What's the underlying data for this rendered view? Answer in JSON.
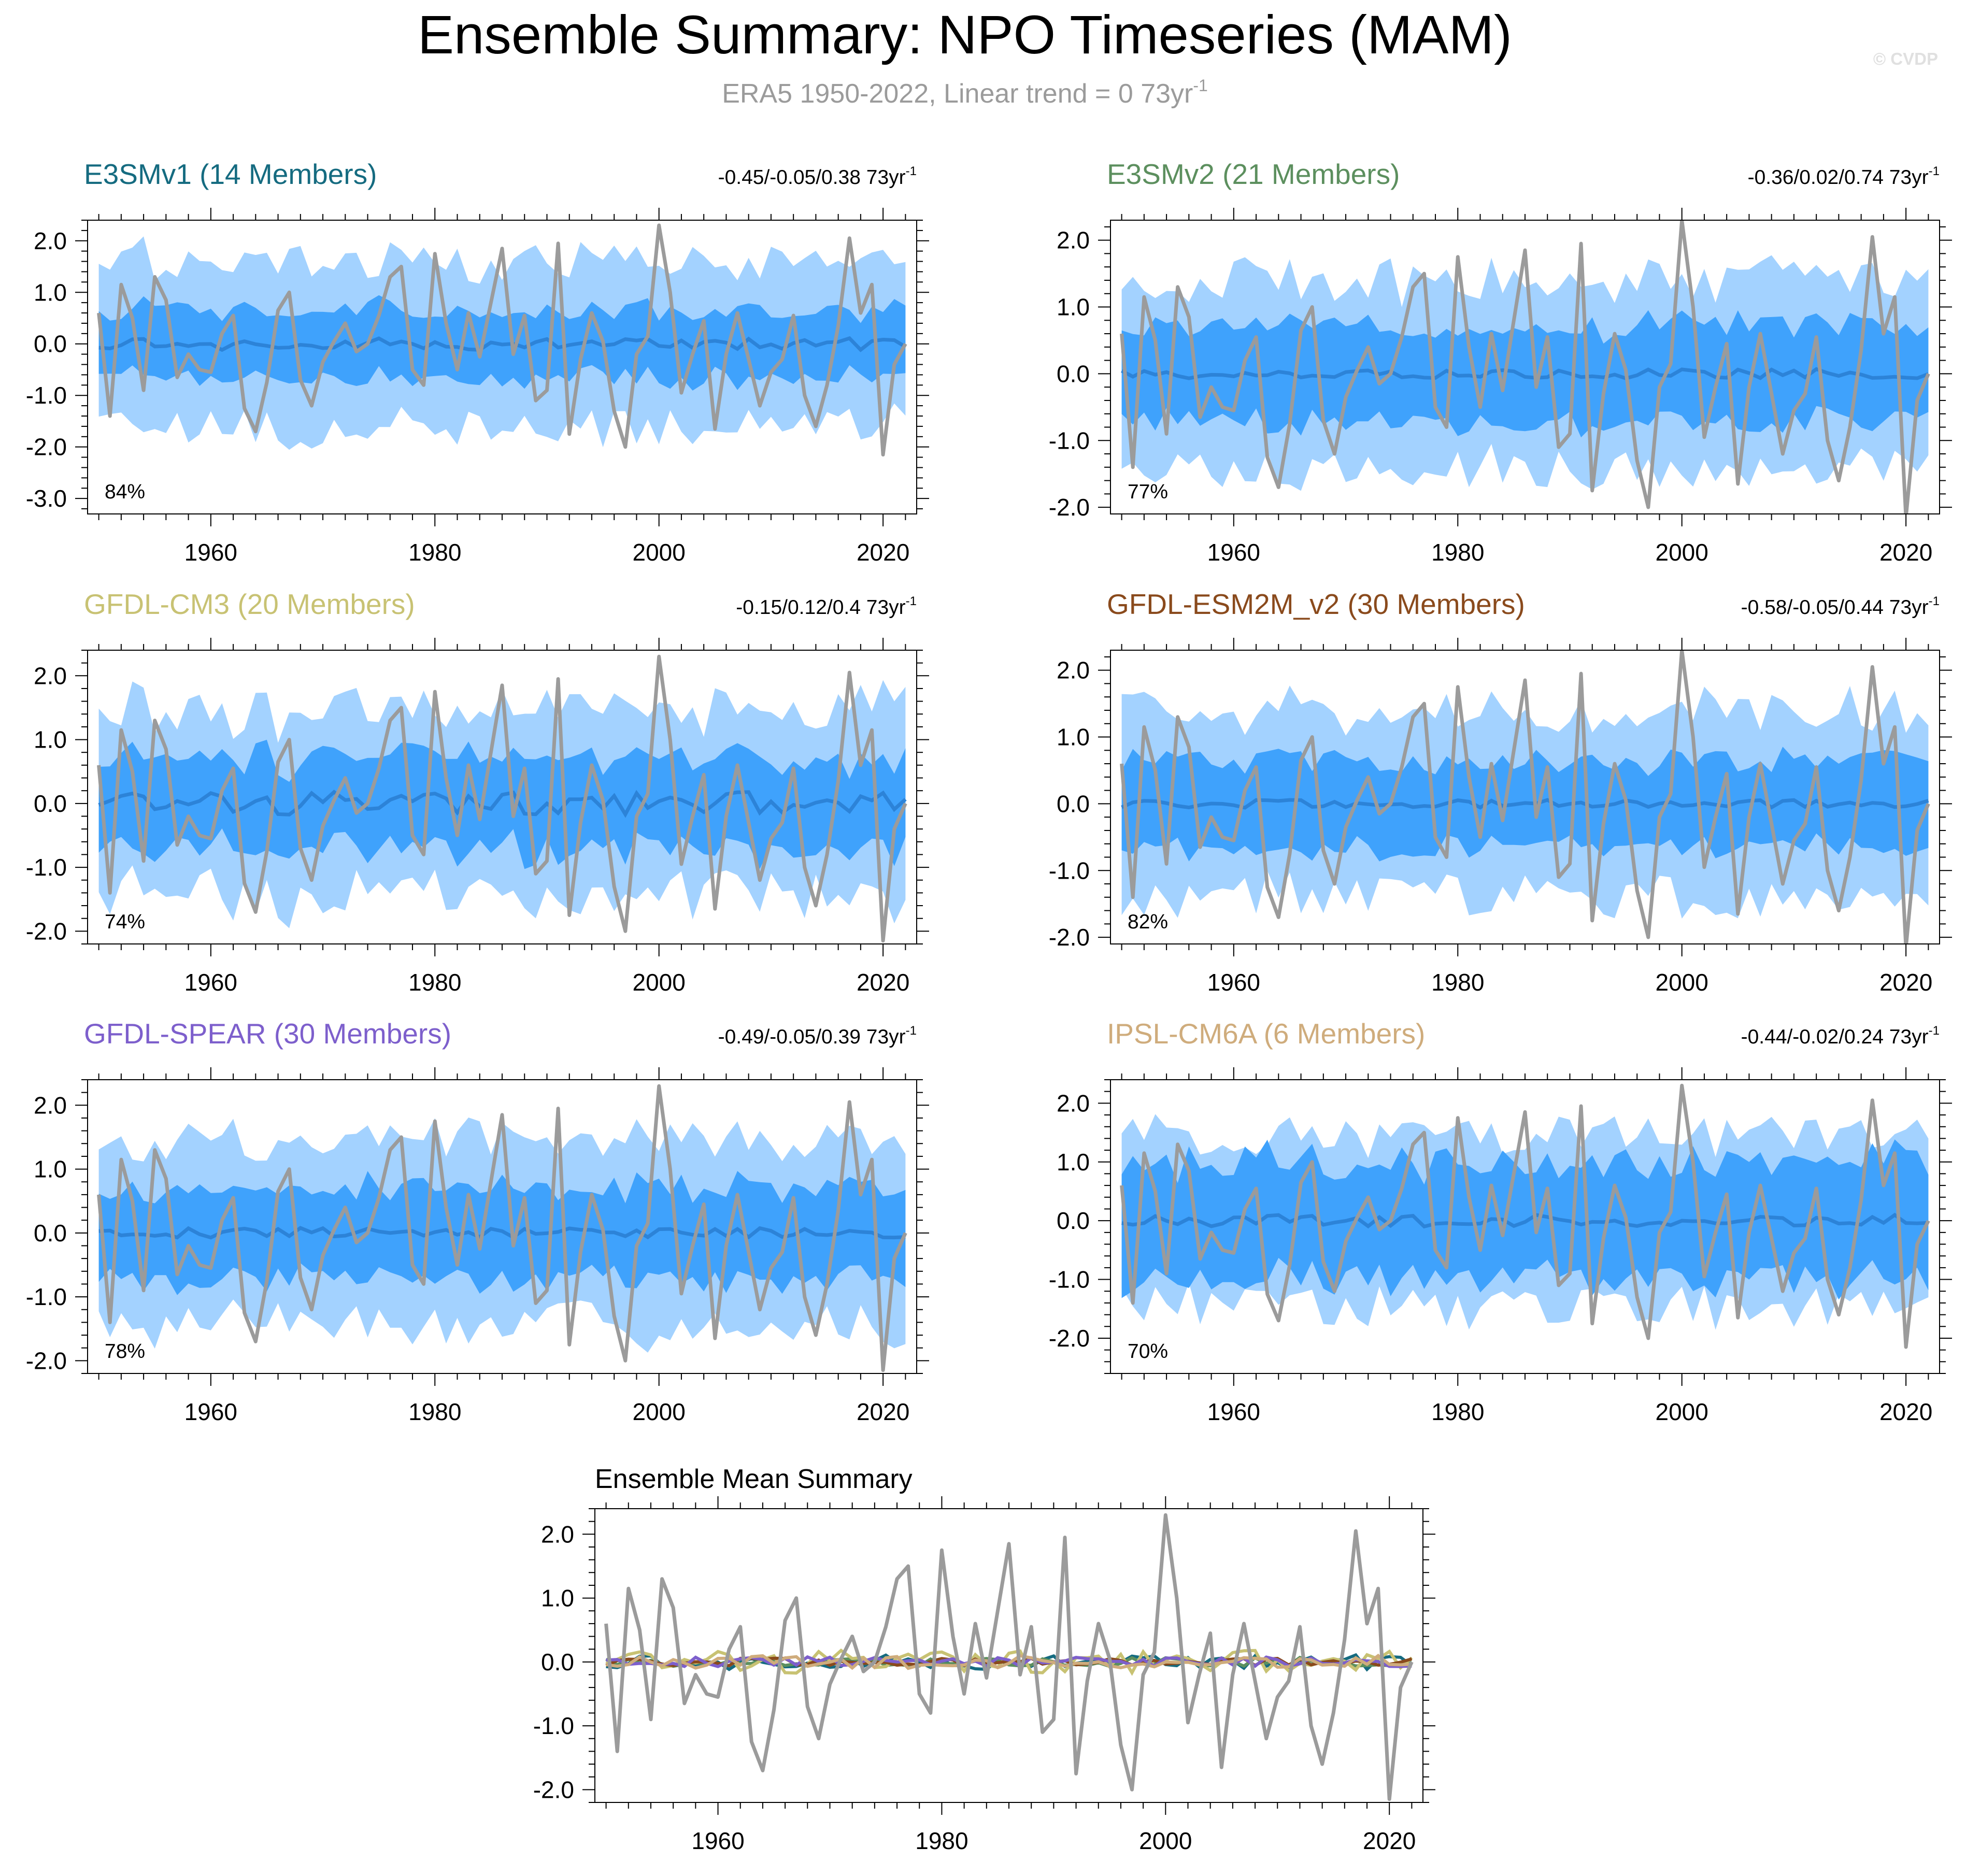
{
  "header": {
    "title": "Ensemble Summary: NPO Timeseries (MAM)",
    "subtitle": "ERA5 1950-2022, Linear trend = 0 73yr",
    "subtitle_sup": "-1",
    "watermark": "© CVDP"
  },
  "colors": {
    "outer_band": "#a3d2ff",
    "inner_band": "#3fa2fc",
    "ens_mean_line": "#2c83d8",
    "obs_line": "#9b9b9b",
    "text": "#000000",
    "subtitle": "#9b9b9b"
  },
  "chart_data": [
    {
      "type": "area",
      "title": "E3SMv1 (14 Members)",
      "title_color": "#156b80",
      "trend_text": "-0.45/-0.05/0.38 73yr",
      "trend_sup": "-1",
      "pct_label": "84%",
      "xlim": [
        1949,
        2023
      ],
      "ylim": [
        -3.3,
        2.4
      ],
      "yticks": [
        2,
        1,
        0,
        -1,
        -2,
        -3
      ],
      "ytick_labels": [
        "2.0",
        "1.0",
        "0.0",
        "-1.0",
        "-2.0",
        "-3.0"
      ],
      "xticks": [
        1960,
        1980,
        2000,
        2020
      ],
      "xtick_labels": [
        "1960",
        "1980",
        "2000",
        "2020"
      ],
      "x_start": 1950,
      "mean_seed": 1,
      "outer_amp": 1.6,
      "inner_amp": 0.65,
      "mean_amp": 0.12
    },
    {
      "type": "area",
      "title": "E3SMv2 (21 Members)",
      "title_color": "#5c8f5e",
      "trend_text": "-0.36/0.02/0.74 73yr",
      "trend_sup": "-1",
      "pct_label": "77%",
      "xlim": [
        1949,
        2023
      ],
      "ylim": [
        -2.1,
        2.3
      ],
      "yticks": [
        2,
        1,
        0,
        -1,
        -2
      ],
      "ytick_labels": [
        "2.0",
        "1.0",
        "0.0",
        "-1.0",
        "-2.0"
      ],
      "xticks": [
        1960,
        1980,
        2000,
        2020
      ],
      "xtick_labels": [
        "1960",
        "1980",
        "2000",
        "2020"
      ],
      "x_start": 1950,
      "mean_seed": 2,
      "outer_amp": 1.4,
      "inner_amp": 0.7,
      "mean_amp": 0.07
    },
    {
      "type": "area",
      "title": "GFDL-CM3 (20 Members)",
      "title_color": "#c8c273",
      "trend_text": "-0.15/0.12/0.4 73yr",
      "trend_sup": "-1",
      "pct_label": "74%",
      "xlim": [
        1949,
        2023
      ],
      "ylim": [
        -2.2,
        2.4
      ],
      "yticks": [
        2,
        1,
        0,
        -1,
        -2
      ],
      "ytick_labels": [
        "2.0",
        "1.0",
        "0.0",
        "-1.0",
        "-2.0"
      ],
      "xticks": [
        1960,
        1980,
        2000,
        2020
      ],
      "xtick_labels": [
        "1960",
        "1980",
        "2000",
        "2020"
      ],
      "x_start": 1950,
      "mean_seed": 3,
      "outer_amp": 1.45,
      "inner_amp": 0.7,
      "mean_amp": 0.18
    },
    {
      "type": "area",
      "title": "GFDL-ESM2M_v2 (30 Members)",
      "title_color": "#8a4a1c",
      "trend_text": "-0.58/-0.05/0.44 73yr",
      "trend_sup": "-1",
      "pct_label": "82%",
      "xlim": [
        1949,
        2023
      ],
      "ylim": [
        -2.1,
        2.3
      ],
      "yticks": [
        2,
        1,
        0,
        -1,
        -2
      ],
      "ytick_labels": [
        "2.0",
        "1.0",
        "0.0",
        "-1.0",
        "-2.0"
      ],
      "xticks": [
        1960,
        1980,
        2000,
        2020
      ],
      "xtick_labels": [
        "1960",
        "1980",
        "2000",
        "2020"
      ],
      "x_start": 1950,
      "mean_seed": 4,
      "outer_amp": 1.4,
      "inner_amp": 0.65,
      "mean_amp": 0.06
    },
    {
      "type": "area",
      "title": "GFDL-SPEAR (30 Members)",
      "title_color": "#7d5fcc",
      "trend_text": "-0.49/-0.05/0.39 73yr",
      "trend_sup": "-1",
      "pct_label": "78%",
      "xlim": [
        1949,
        2023
      ],
      "ylim": [
        -2.2,
        2.4
      ],
      "yticks": [
        2,
        1,
        0,
        -1,
        -2
      ],
      "ytick_labels": [
        "2.0",
        "1.0",
        "0.0",
        "-1.0",
        "-2.0"
      ],
      "xticks": [
        1960,
        1980,
        2000,
        2020
      ],
      "xtick_labels": [
        "1960",
        "1980",
        "2000",
        "2020"
      ],
      "x_start": 1950,
      "mean_seed": 5,
      "outer_amp": 1.45,
      "inner_amp": 0.7,
      "mean_amp": 0.08
    },
    {
      "type": "area",
      "title": "IPSL-CM6A (6 Members)",
      "title_color": "#cfac7c",
      "trend_text": "-0.44/-0.02/0.24 73yr",
      "trend_sup": "-1",
      "pct_label": "70%",
      "xlim": [
        1949,
        2023
      ],
      "ylim": [
        -2.6,
        2.4
      ],
      "yticks": [
        2,
        1,
        0,
        -1,
        -2
      ],
      "ytick_labels": [
        "2.0",
        "1.0",
        "0.0",
        "-1.0",
        "-2.0"
      ],
      "xticks": [
        1960,
        1980,
        2000,
        2020
      ],
      "xtick_labels": [
        "1960",
        "1980",
        "2000",
        "2020"
      ],
      "x_start": 1950,
      "mean_seed": 6,
      "outer_amp": 1.45,
      "inner_amp": 1.0,
      "mean_amp": 0.1
    },
    {
      "type": "line",
      "title": "Ensemble Mean Summary",
      "xlim": [
        1949,
        2023
      ],
      "ylim": [
        -2.2,
        2.4
      ],
      "yticks": [
        2,
        1,
        0,
        -1,
        -2
      ],
      "ytick_labels": [
        "2.0",
        "1.0",
        "0.0",
        "-1.0",
        "-2.0"
      ],
      "xticks": [
        1960,
        1980,
        2000,
        2020
      ],
      "xtick_labels": [
        "1960",
        "1980",
        "2000",
        "2020"
      ],
      "x_start": 1950,
      "series": [
        {
          "name": "E3SMv1",
          "color": "#156b80",
          "seed": 1,
          "amp": 0.12
        },
        {
          "name": "E3SMv2",
          "color": "#5c8f5e",
          "seed": 2,
          "amp": 0.07
        },
        {
          "name": "GFDL-CM3",
          "color": "#c8c273",
          "seed": 3,
          "amp": 0.18
        },
        {
          "name": "GFDL-ESM2M_v2",
          "color": "#8a4a1c",
          "seed": 4,
          "amp": 0.06
        },
        {
          "name": "GFDL-SPEAR",
          "color": "#7d5fcc",
          "seed": 5,
          "amp": 0.08
        },
        {
          "name": "IPSL-CM6A",
          "color": "#cfac7c",
          "seed": 6,
          "amp": 0.1
        }
      ]
    }
  ],
  "observed_era5": {
    "name": "ERA5",
    "x_start": 1950,
    "values": [
      0.6,
      -1.4,
      1.15,
      0.5,
      -0.9,
      1.3,
      0.85,
      -0.65,
      -0.2,
      -0.5,
      -0.55,
      0.2,
      0.55,
      -1.25,
      -1.7,
      -0.75,
      0.65,
      1.0,
      -0.7,
      -1.2,
      -0.35,
      0.05,
      0.4,
      -0.15,
      0.0,
      0.55,
      1.3,
      1.5,
      -0.5,
      -0.8,
      1.75,
      0.4,
      -0.5,
      0.6,
      -0.25,
      0.8,
      1.85,
      -0.2,
      0.55,
      -1.1,
      -0.9,
      1.95,
      -1.75,
      -0.3,
      0.6,
      0.05,
      -1.3,
      -2.0,
      -0.2,
      0.15,
      2.3,
      1.0,
      -0.95,
      -0.2,
      0.45,
      -1.65,
      -0.2,
      0.6,
      -0.3,
      -1.2,
      -0.55,
      -0.3,
      0.55,
      -1.0,
      -1.6,
      -0.8,
      0.35,
      2.05,
      0.6,
      1.15,
      -2.15,
      -0.4,
      0.0
    ]
  }
}
